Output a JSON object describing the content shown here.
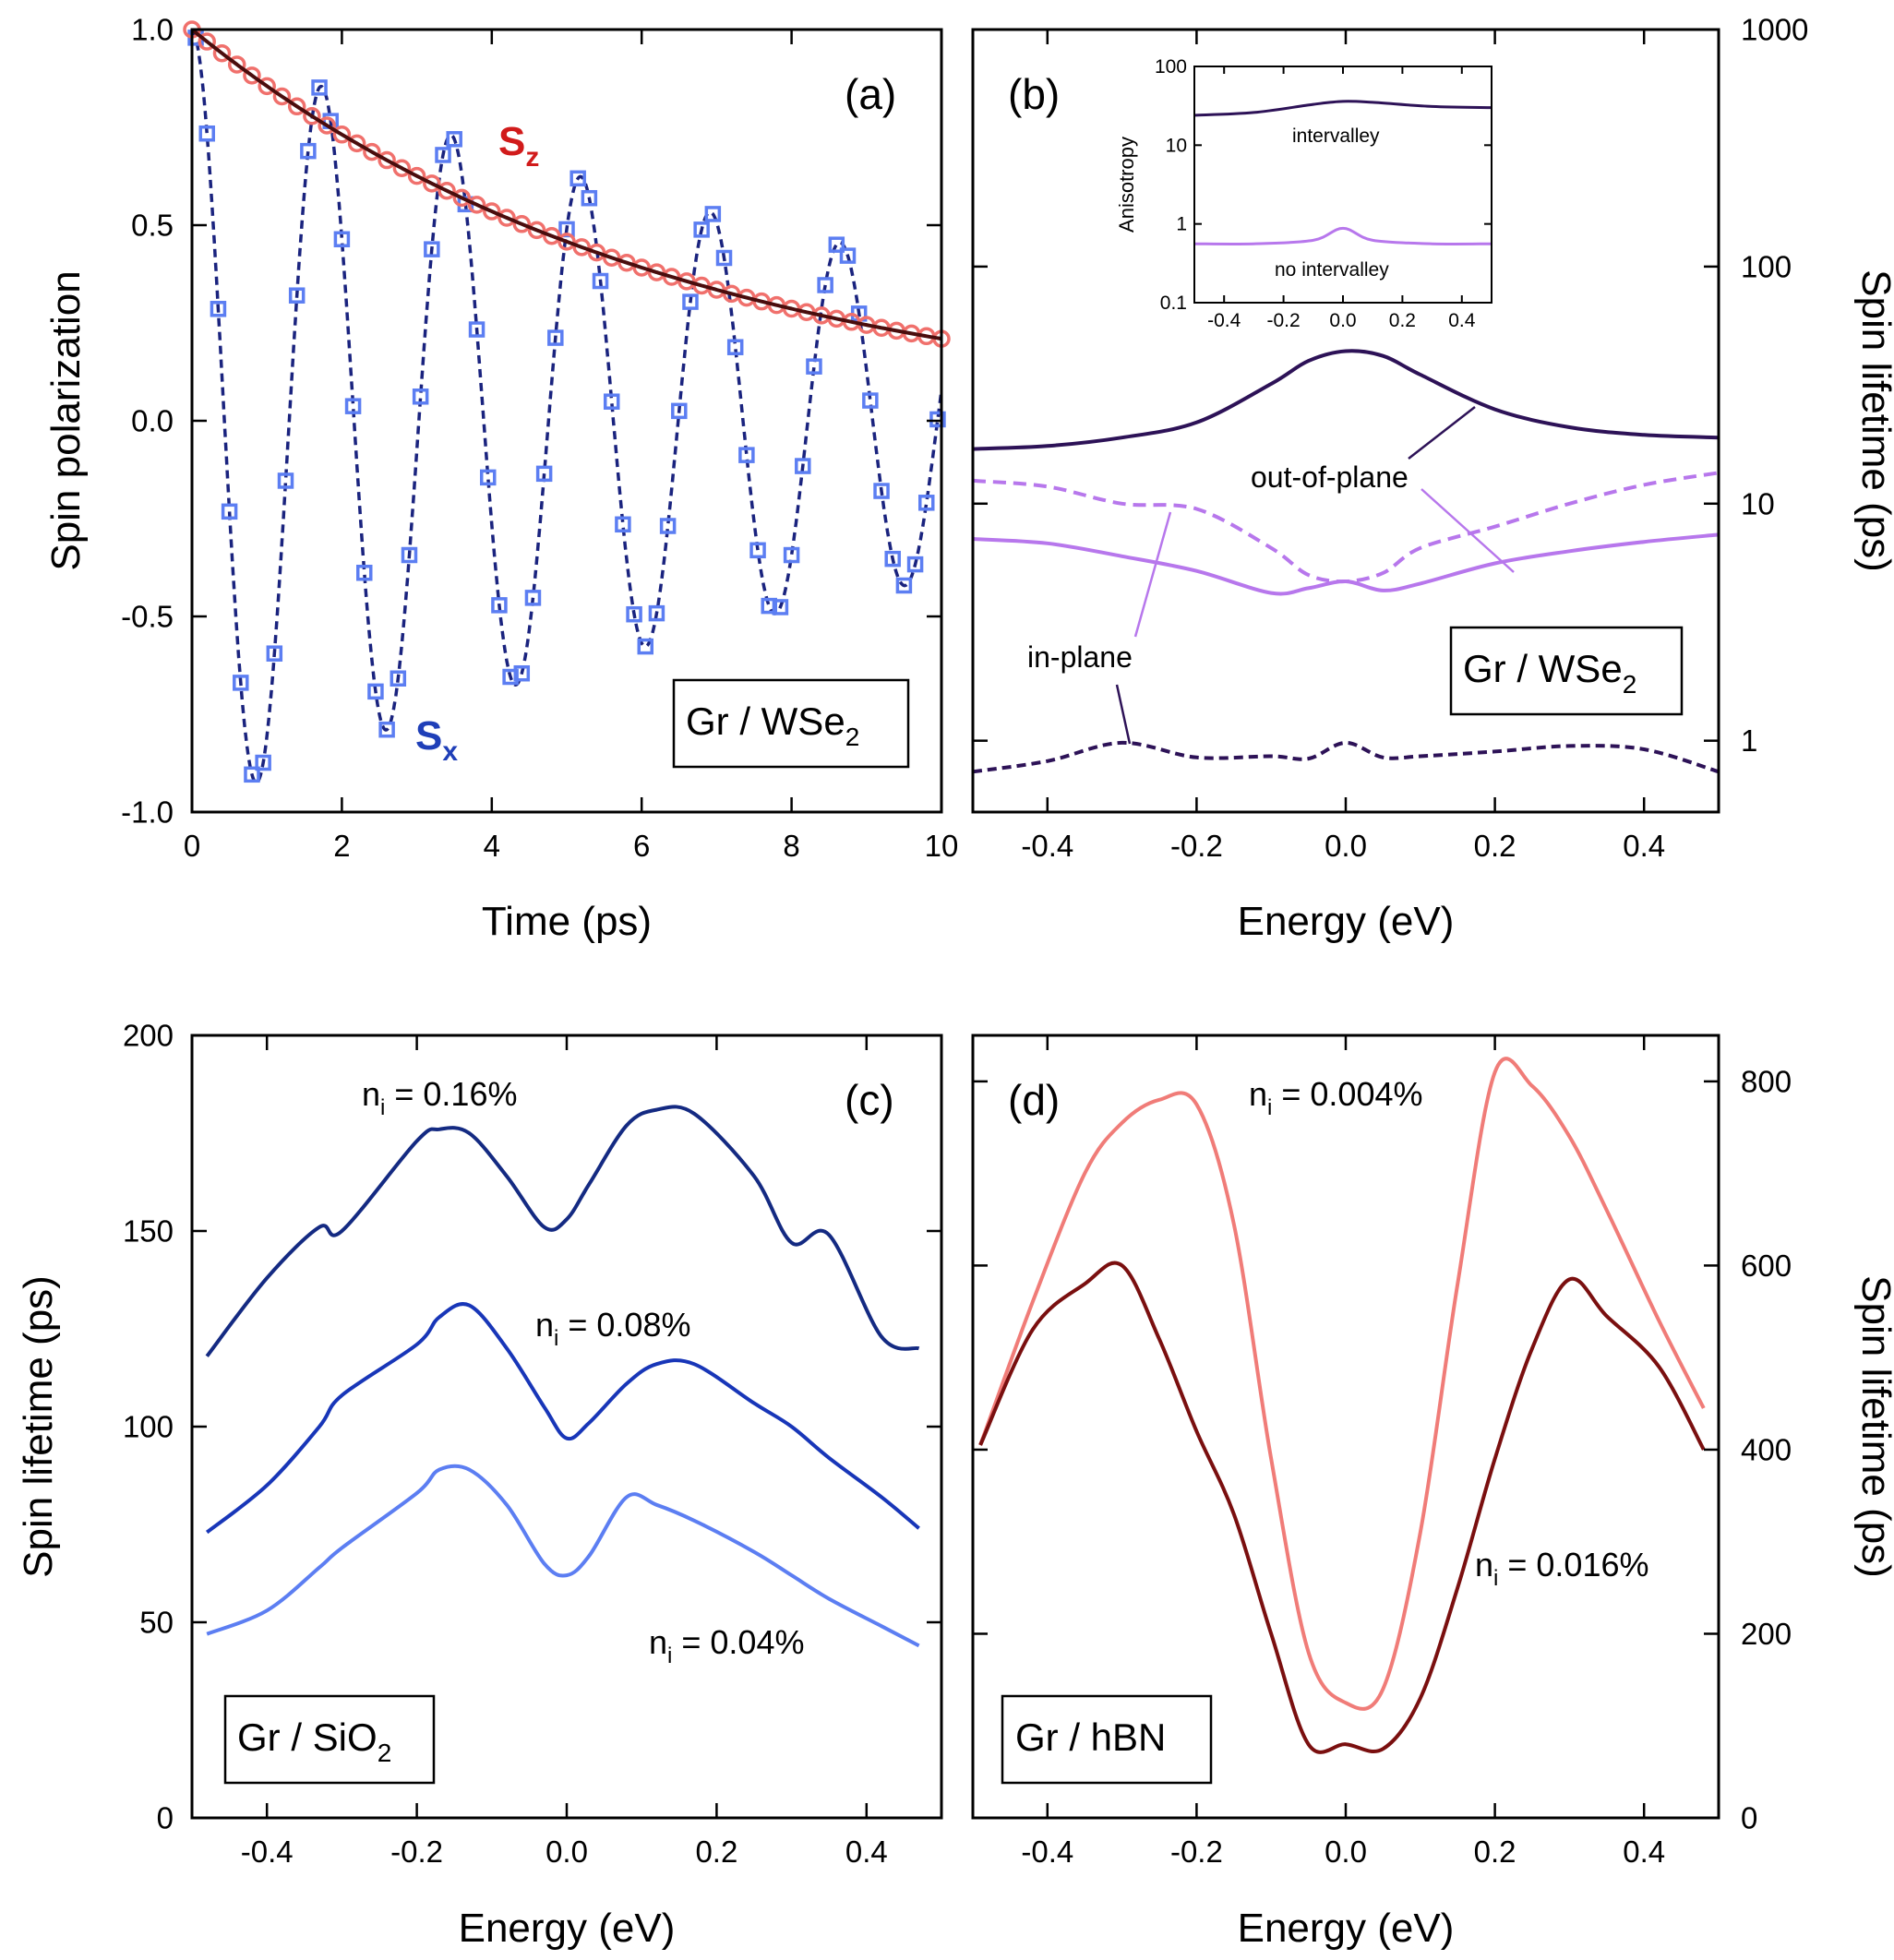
{
  "colors": {
    "dark_purple": "#2d1257",
    "light_purple": "#b777ec",
    "sx_marker": "#5c7ef2",
    "sx_line": "#1a237e",
    "sz_marker": "#f0706c",
    "sz_line": "#4a0d0d",
    "sz_label": "#d11b1b",
    "sx_label": "#1f3fb8",
    "c_016": "#142a82",
    "c_008": "#1836b8",
    "c_004": "#5c7ef2",
    "d_0004": "#f07c78",
    "d_0016": "#7a0f0f"
  },
  "chart_data": [
    {
      "id": "a",
      "type": "line",
      "panel_label": "(a)",
      "xlabel": "Time (ps)",
      "ylabel": "Spin polarization",
      "xlim": [
        0,
        10
      ],
      "ylim": [
        -1.0,
        1.0
      ],
      "xticks": [
        "0",
        "2",
        "4",
        "6",
        "8",
        "10"
      ],
      "yticks": [
        "-1.0",
        "-0.5",
        "0.0",
        "0.5",
        "1.0"
      ],
      "legend": "Gr / WSe",
      "legend_sub": "2",
      "sz_label": "S",
      "sz_sub": "z",
      "sx_label": "S",
      "sx_sub": "x",
      "series": [
        {
          "name": "Sz",
          "model": "exp_decay",
          "amplitude": 1.0,
          "tau_ps": 6.4
        },
        {
          "name": "Sx",
          "model": "damped_cosine",
          "amplitude": 1.0,
          "tau_ps": 11.0,
          "period_ps": 1.73,
          "sample_step_ps": 0.15
        }
      ]
    },
    {
      "id": "b",
      "type": "line",
      "scale": "log",
      "panel_label": "(b)",
      "xlabel": "Energy (eV)",
      "ylabel": "Spin lifetime (ps)",
      "xlim": [
        -0.5,
        0.5
      ],
      "ylim": [
        0.5,
        1000
      ],
      "xticks": [
        "-0.4",
        "-0.2",
        "0.0",
        "0.2",
        "0.4"
      ],
      "yticks": [
        "1",
        "10",
        "100",
        "1000"
      ],
      "legend": "Gr / WSe",
      "legend_sub": "2",
      "annotations": [
        "out-of-plane",
        "in-plane"
      ],
      "x": [
        -0.5,
        -0.4,
        -0.3,
        -0.2,
        -0.1,
        -0.05,
        0.0,
        0.05,
        0.1,
        0.2,
        0.3,
        0.4,
        0.5
      ],
      "series": [
        {
          "name": "out-of-plane, intervalley",
          "values": [
            17,
            17.5,
            19,
            22,
            32,
            40,
            44,
            42,
            35,
            25,
            21,
            19.5,
            19
          ]
        },
        {
          "name": "in-plane, intervalley",
          "values": [
            0.74,
            0.82,
            0.98,
            0.85,
            0.86,
            0.84,
            0.98,
            0.85,
            0.86,
            0.9,
            0.95,
            0.92,
            0.74
          ]
        },
        {
          "name": "out-of-plane, no intervalley",
          "values": [
            7.1,
            6.8,
            6.0,
            5.2,
            4.2,
            4.4,
            4.7,
            4.3,
            4.6,
            5.6,
            6.3,
            6.9,
            7.4
          ]
        },
        {
          "name": "in-plane, no intervalley",
          "values": [
            12.5,
            11.8,
            10.0,
            9.5,
            6.5,
            5.0,
            4.7,
            5.1,
            6.5,
            8.0,
            10.0,
            12.0,
            13.5
          ]
        }
      ],
      "inset": {
        "ylabel": "Anisotropy",
        "xlim": [
          -0.5,
          0.5
        ],
        "ylim": [
          0.1,
          100
        ],
        "xticks": [
          "-0.4",
          "-0.2",
          "0.0",
          "0.2",
          "0.4"
        ],
        "yticks": [
          "0.1",
          "1",
          "10",
          "100"
        ],
        "annotations": [
          "intervalley",
          "no intervalley"
        ],
        "x": [
          -0.5,
          -0.3,
          -0.1,
          0.0,
          0.1,
          0.3,
          0.5
        ],
        "series": [
          {
            "name": "intervalley",
            "values": [
              24,
              26,
              33,
              36,
              35,
              31,
              30
            ]
          },
          {
            "name": "no intervalley",
            "values": [
              0.56,
              0.56,
              0.62,
              0.88,
              0.62,
              0.56,
              0.56
            ]
          }
        ]
      }
    },
    {
      "id": "c",
      "type": "line",
      "panel_label": "(c)",
      "xlabel": "Energy (eV)",
      "ylabel": "Spin lifetime (ps)",
      "xlim": [
        -0.5,
        0.5
      ],
      "ylim": [
        0,
        200
      ],
      "xticks": [
        "-0.4",
        "-0.2",
        "0.0",
        "0.2",
        "0.4"
      ],
      "yticks": [
        "0",
        "50",
        "100",
        "150",
        "200"
      ],
      "legend": "Gr / SiO",
      "legend_sub": "2",
      "x": [
        -0.48,
        -0.4,
        -0.33,
        -0.3,
        -0.2,
        -0.17,
        -0.13,
        -0.08,
        -0.03,
        0.0,
        0.03,
        0.08,
        0.12,
        0.17,
        0.25,
        0.3,
        0.35,
        0.42,
        0.47
      ],
      "series": [
        {
          "name": "n_i = 0.16%",
          "label": "n",
          "label_sub": "i",
          "label_rest": " = 0.16%",
          "values": [
            118,
            138,
            151,
            150,
            173,
            176,
            175,
            164,
            151,
            153,
            162,
            177,
            181,
            180,
            164,
            147,
            149,
            123,
            120
          ]
        },
        {
          "name": "n_i = 0.08%",
          "label": "n",
          "label_sub": "i",
          "label_rest": " = 0.08%",
          "values": [
            73,
            85,
            100,
            108,
            121,
            128,
            131,
            120,
            105,
            97,
            101,
            111,
            116,
            116,
            106,
            100,
            92,
            82,
            74
          ]
        },
        {
          "name": "n_i = 0.04%",
          "label": "n",
          "label_sub": "i",
          "label_rest": " = 0.04%",
          "values": [
            47,
            53,
            64,
            69,
            83,
            89,
            89,
            80,
            65,
            62,
            67,
            82,
            80,
            76,
            68,
            62,
            56,
            49,
            44
          ]
        }
      ]
    },
    {
      "id": "d",
      "type": "line",
      "panel_label": "(d)",
      "xlabel": "Energy (eV)",
      "ylabel": "Spin lifetime (ps)",
      "xlim": [
        -0.5,
        0.5
      ],
      "ylim": [
        0,
        850
      ],
      "xticks": [
        "-0.4",
        "-0.2",
        "0.0",
        "0.2",
        "0.4"
      ],
      "yticks": [
        "0",
        "200",
        "400",
        "600",
        "800"
      ],
      "legend": "Gr / hBN",
      "x": [
        -0.49,
        -0.42,
        -0.35,
        -0.3,
        -0.25,
        -0.2,
        -0.15,
        -0.1,
        -0.05,
        0.0,
        0.05,
        0.1,
        0.15,
        0.2,
        0.25,
        0.3,
        0.35,
        0.42,
        0.48
      ],
      "series": [
        {
          "name": "n_i = 0.004%",
          "label": "n",
          "label_sub": "i",
          "label_rest": " = 0.004%",
          "values": [
            405,
            560,
            700,
            755,
            780,
            775,
            645,
            390,
            180,
            125,
            140,
            310,
            580,
            810,
            795,
            740,
            660,
            540,
            445
          ]
        },
        {
          "name": "n_i = 0.016%",
          "label": "n",
          "label_sub": "i",
          "label_rest": " = 0.016%",
          "values": [
            405,
            530,
            580,
            600,
            520,
            420,
            330,
            200,
            80,
            80,
            75,
            130,
            250,
            390,
            510,
            585,
            545,
            490,
            400
          ]
        }
      ]
    }
  ]
}
